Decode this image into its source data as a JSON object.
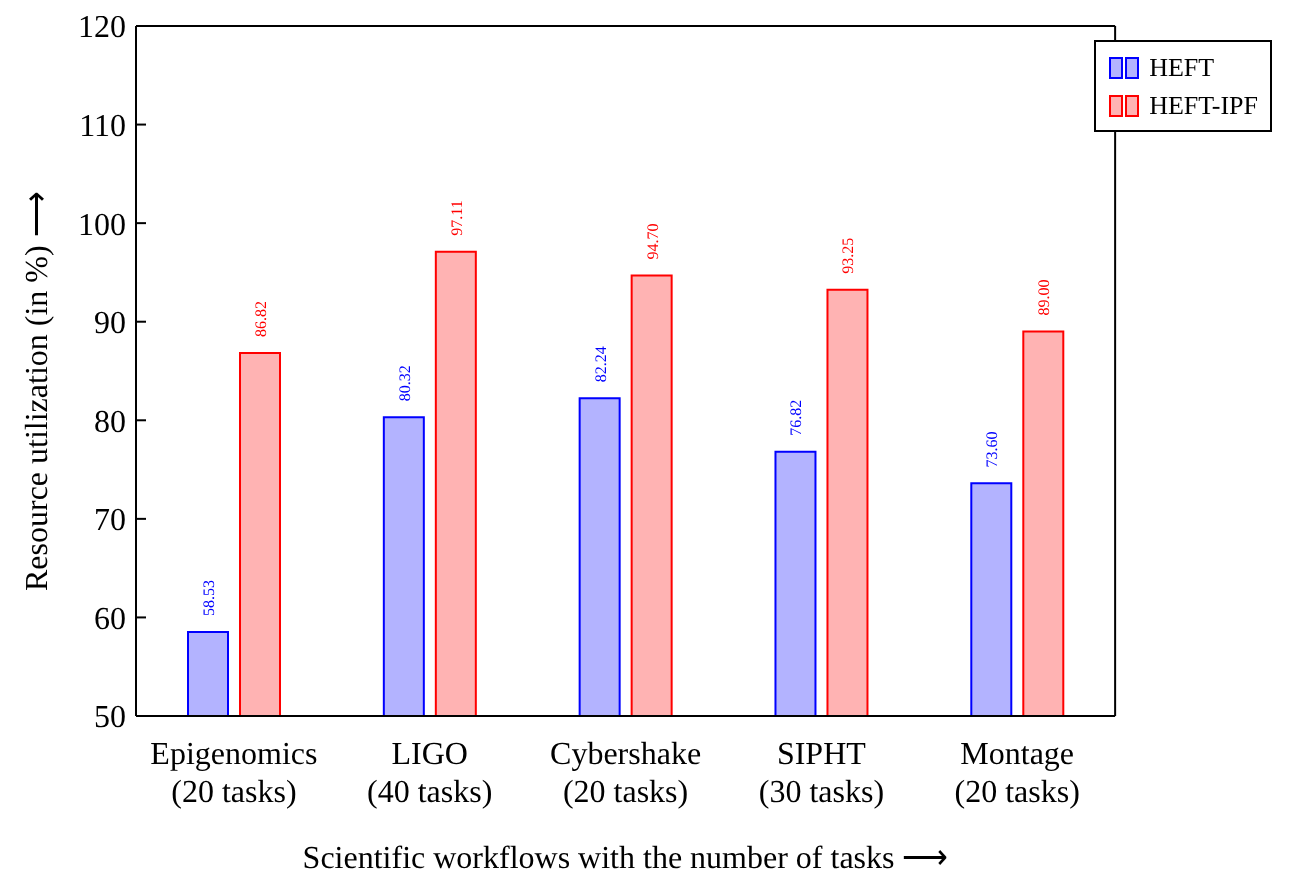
{
  "chart_data": {
    "type": "bar",
    "xlabel": "Scientific workflows with the number of tasks ⟶",
    "ylabel": "Resource utilization (in %) ⟶",
    "categories": [
      "Epigenomics\n(20 tasks)",
      "LIGO\n(40 tasks)",
      "Cybershake\n(20 tasks)",
      "SIPHT\n(30 tasks)",
      "Montage\n(20 tasks)"
    ],
    "series": [
      {
        "name": "HEFT",
        "color": "#b3b3ff",
        "values": [
          58.53,
          80.32,
          82.24,
          76.82,
          73.6
        ],
        "value_labels": [
          "58.53",
          "80.32",
          "82.24",
          "76.82",
          "73.60"
        ]
      },
      {
        "name": "HEFT-IPF",
        "color": "#ffb3b3",
        "values": [
          86.82,
          97.11,
          94.7,
          93.25,
          89.0
        ],
        "value_labels": [
          "86.82",
          "97.11",
          "94.70",
          "93.25",
          "89.00"
        ]
      }
    ],
    "ylim": [
      50,
      120
    ],
    "yticks": [
      50,
      60,
      70,
      80,
      90,
      100,
      110,
      120
    ],
    "grid": false,
    "legend": "top right"
  }
}
